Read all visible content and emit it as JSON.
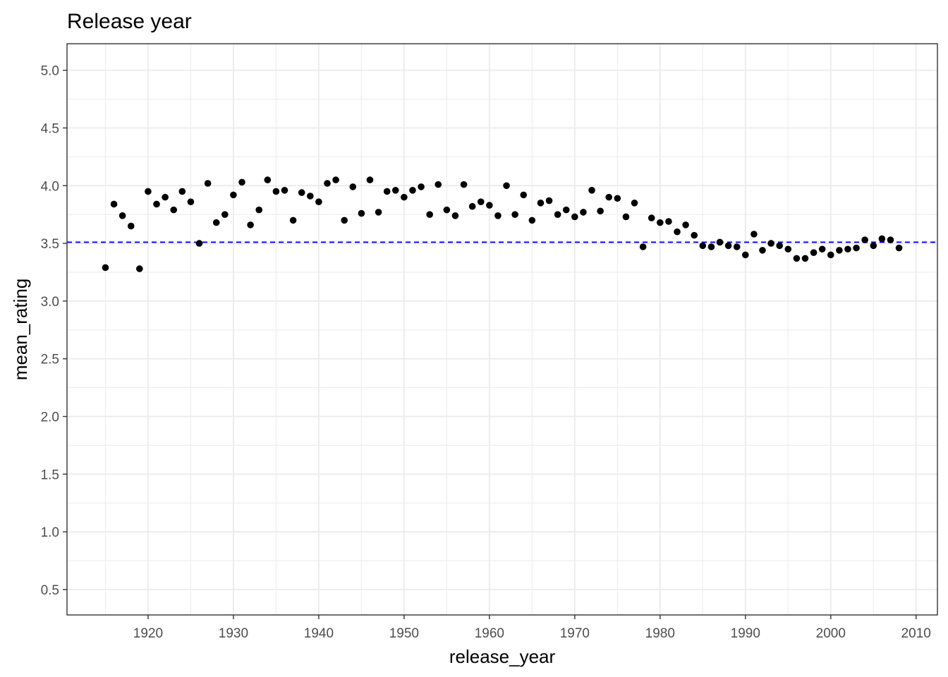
{
  "chart_data": {
    "type": "scatter",
    "title": "Release year",
    "xlabel": "release_year",
    "ylabel": "mean_rating",
    "xlim": [
      1910.5,
      2012.5
    ],
    "ylim": [
      0.28,
      5.23
    ],
    "x_ticks": [
      1920,
      1930,
      1940,
      1950,
      1960,
      1970,
      1980,
      1990,
      2000,
      2010
    ],
    "y_ticks": [
      0.5,
      1.0,
      1.5,
      2.0,
      2.5,
      3.0,
      3.5,
      4.0,
      4.5,
      5.0
    ],
    "x_tick_labels": [
      "1920",
      "1930",
      "1940",
      "1950",
      "1960",
      "1970",
      "1980",
      "1990",
      "2000",
      "2010"
    ],
    "y_tick_labels": [
      "0.5",
      "1.0",
      "1.5",
      "2.0",
      "2.5",
      "3.0",
      "3.5",
      "4.0",
      "4.5",
      "5.0"
    ],
    "grid": true,
    "reference_line": {
      "y": 3.51,
      "color": "#0000ff",
      "style": "dashed"
    },
    "point_color": "#000000",
    "points": [
      {
        "x": 1915,
        "y": 3.29
      },
      {
        "x": 1916,
        "y": 3.84
      },
      {
        "x": 1917,
        "y": 3.74
      },
      {
        "x": 1918,
        "y": 3.65
      },
      {
        "x": 1919,
        "y": 3.28
      },
      {
        "x": 1920,
        "y": 3.95
      },
      {
        "x": 1921,
        "y": 3.84
      },
      {
        "x": 1922,
        "y": 3.9
      },
      {
        "x": 1923,
        "y": 3.79
      },
      {
        "x": 1924,
        "y": 3.95
      },
      {
        "x": 1925,
        "y": 3.86
      },
      {
        "x": 1926,
        "y": 3.5
      },
      {
        "x": 1927,
        "y": 4.02
      },
      {
        "x": 1928,
        "y": 3.68
      },
      {
        "x": 1929,
        "y": 3.75
      },
      {
        "x": 1930,
        "y": 3.92
      },
      {
        "x": 1931,
        "y": 4.03
      },
      {
        "x": 1932,
        "y": 3.66
      },
      {
        "x": 1933,
        "y": 3.79
      },
      {
        "x": 1934,
        "y": 4.05
      },
      {
        "x": 1935,
        "y": 3.95
      },
      {
        "x": 1936,
        "y": 3.96
      },
      {
        "x": 1937,
        "y": 3.7
      },
      {
        "x": 1938,
        "y": 3.94
      },
      {
        "x": 1939,
        "y": 3.91
      },
      {
        "x": 1940,
        "y": 3.86
      },
      {
        "x": 1941,
        "y": 4.02
      },
      {
        "x": 1942,
        "y": 4.05
      },
      {
        "x": 1943,
        "y": 3.7
      },
      {
        "x": 1944,
        "y": 3.99
      },
      {
        "x": 1945,
        "y": 3.76
      },
      {
        "x": 1946,
        "y": 4.05
      },
      {
        "x": 1947,
        "y": 3.77
      },
      {
        "x": 1948,
        "y": 3.95
      },
      {
        "x": 1949,
        "y": 3.96
      },
      {
        "x": 1950,
        "y": 3.9
      },
      {
        "x": 1951,
        "y": 3.96
      },
      {
        "x": 1952,
        "y": 3.99
      },
      {
        "x": 1953,
        "y": 3.75
      },
      {
        "x": 1954,
        "y": 4.01
      },
      {
        "x": 1955,
        "y": 3.79
      },
      {
        "x": 1956,
        "y": 3.74
      },
      {
        "x": 1957,
        "y": 4.01
      },
      {
        "x": 1958,
        "y": 3.82
      },
      {
        "x": 1959,
        "y": 3.86
      },
      {
        "x": 1960,
        "y": 3.83
      },
      {
        "x": 1961,
        "y": 3.74
      },
      {
        "x": 1962,
        "y": 4.0
      },
      {
        "x": 1963,
        "y": 3.75
      },
      {
        "x": 1964,
        "y": 3.92
      },
      {
        "x": 1965,
        "y": 3.7
      },
      {
        "x": 1966,
        "y": 3.85
      },
      {
        "x": 1967,
        "y": 3.87
      },
      {
        "x": 1968,
        "y": 3.75
      },
      {
        "x": 1969,
        "y": 3.79
      },
      {
        "x": 1970,
        "y": 3.73
      },
      {
        "x": 1971,
        "y": 3.77
      },
      {
        "x": 1972,
        "y": 3.96
      },
      {
        "x": 1973,
        "y": 3.78
      },
      {
        "x": 1974,
        "y": 3.9
      },
      {
        "x": 1975,
        "y": 3.89
      },
      {
        "x": 1976,
        "y": 3.73
      },
      {
        "x": 1977,
        "y": 3.85
      },
      {
        "x": 1978,
        "y": 3.47
      },
      {
        "x": 1979,
        "y": 3.72
      },
      {
        "x": 1980,
        "y": 3.68
      },
      {
        "x": 1981,
        "y": 3.69
      },
      {
        "x": 1982,
        "y": 3.6
      },
      {
        "x": 1983,
        "y": 3.66
      },
      {
        "x": 1984,
        "y": 3.57
      },
      {
        "x": 1985,
        "y": 3.48
      },
      {
        "x": 1986,
        "y": 3.47
      },
      {
        "x": 1987,
        "y": 3.51
      },
      {
        "x": 1988,
        "y": 3.48
      },
      {
        "x": 1989,
        "y": 3.47
      },
      {
        "x": 1990,
        "y": 3.4
      },
      {
        "x": 1991,
        "y": 3.58
      },
      {
        "x": 1992,
        "y": 3.44
      },
      {
        "x": 1993,
        "y": 3.5
      },
      {
        "x": 1994,
        "y": 3.48
      },
      {
        "x": 1995,
        "y": 3.45
      },
      {
        "x": 1996,
        "y": 3.37
      },
      {
        "x": 1997,
        "y": 3.37
      },
      {
        "x": 1998,
        "y": 3.42
      },
      {
        "x": 1999,
        "y": 3.45
      },
      {
        "x": 2000,
        "y": 3.4
      },
      {
        "x": 2001,
        "y": 3.44
      },
      {
        "x": 2002,
        "y": 3.45
      },
      {
        "x": 2003,
        "y": 3.46
      },
      {
        "x": 2004,
        "y": 3.53
      },
      {
        "x": 2005,
        "y": 3.48
      },
      {
        "x": 2006,
        "y": 3.54
      },
      {
        "x": 2007,
        "y": 3.53
      },
      {
        "x": 2008,
        "y": 3.46
      }
    ]
  }
}
